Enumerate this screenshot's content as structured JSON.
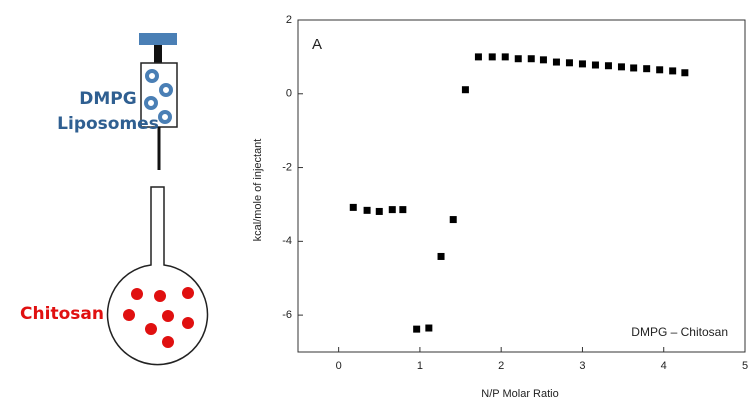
{
  "illustration": {
    "syringe_label": [
      "DMPG",
      "Liposomes"
    ],
    "flask_label": "Chitosan"
  },
  "chart_data": {
    "type": "scatter",
    "annotations": [
      "A",
      "DMPG – Chitosan"
    ],
    "x_label": "N/P Molar Ratio",
    "y_label": "kcal/mole of injectant",
    "xlim": [
      -0.5,
      5
    ],
    "ylim": [
      -7,
      2
    ],
    "xticks": [
      0,
      1,
      2,
      3,
      4,
      5
    ],
    "yticks": [
      -6,
      -4,
      -2,
      0,
      2
    ],
    "grid": false,
    "color": "#000000",
    "x": [
      0.18,
      0.35,
      0.5,
      0.66,
      0.79,
      0.96,
      1.11,
      1.26,
      1.41,
      1.56,
      1.72,
      1.89,
      2.05,
      2.21,
      2.37,
      2.52,
      2.68,
      2.84,
      3.0,
      3.16,
      3.32,
      3.48,
      3.63,
      3.79,
      3.95,
      4.11,
      4.26
    ],
    "values": [
      -3.08,
      -3.16,
      -3.19,
      -3.14,
      -3.14,
      -6.38,
      -6.35,
      -4.41,
      -3.41,
      0.11,
      1.0,
      1.0,
      1.0,
      0.95,
      0.95,
      0.92,
      0.86,
      0.84,
      0.81,
      0.78,
      0.76,
      0.73,
      0.7,
      0.68,
      0.65,
      0.62,
      0.57
    ]
  }
}
